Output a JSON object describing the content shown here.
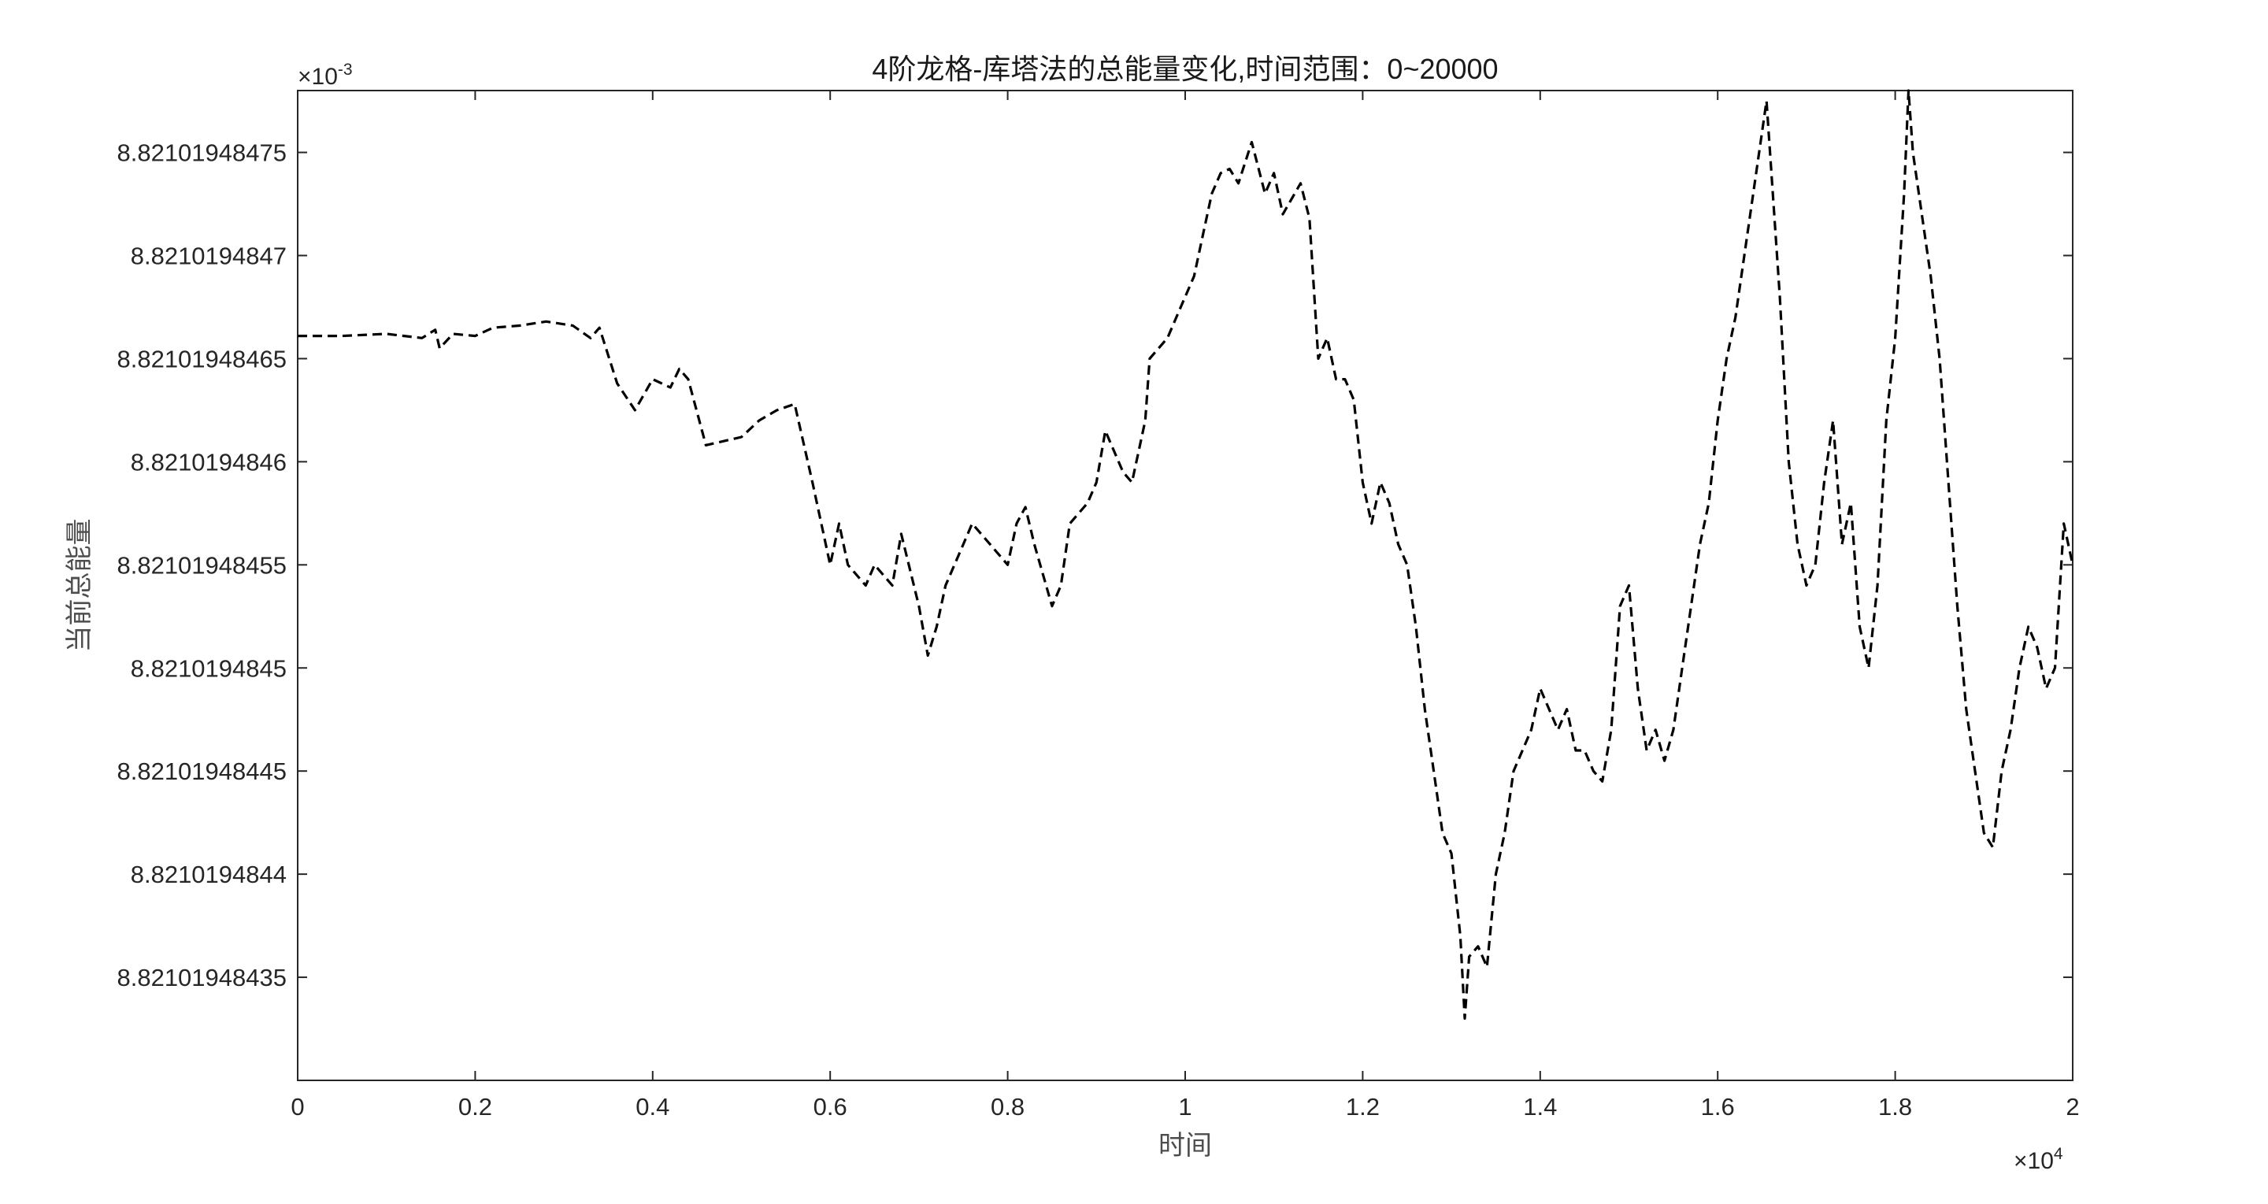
{
  "chart_data": {
    "type": "line",
    "title": "4阶龙格-库塔法的总能量变化,时间范围：0~20000",
    "xlabel": "时间",
    "ylabel": "当前总能量",
    "x_multiplier": "×10",
    "x_multiplier_exp": "4",
    "y_multiplier": "×10",
    "y_multiplier_exp": "-3",
    "xlim": [
      0,
      2
    ],
    "ylim": [
      8.8210194843,
      8.82101948478
    ],
    "x_ticks": [
      0,
      0.2,
      0.4,
      0.6,
      0.8,
      1,
      1.2,
      1.4,
      1.6,
      1.8,
      2
    ],
    "x_tick_labels": [
      "0",
      "0.2",
      "0.4",
      "0.6",
      "0.8",
      "1",
      "1.2",
      "1.4",
      "1.6",
      "1.8",
      "2"
    ],
    "y_ticks": [
      8.82101948435,
      8.8210194844,
      8.82101948445,
      8.8210194845,
      8.82101948455,
      8.8210194846,
      8.82101948465,
      8.8210194847,
      8.82101948475
    ],
    "y_tick_labels": [
      "8.82101948435",
      "8.8210194844",
      "8.82101948445",
      "8.8210194845",
      "8.82101948455",
      "8.8210194846",
      "8.82101948465",
      "8.8210194847",
      "8.82101948475"
    ],
    "grid": false,
    "series": [
      {
        "line_style": "dashed",
        "color": "#000000",
        "points": [
          [
            0,
            8.821019484661
          ],
          [
            0.05,
            8.821019484661
          ],
          [
            0.1,
            8.821019484662
          ],
          [
            0.14,
            8.82101948466
          ],
          [
            0.155,
            8.821019484664
          ],
          [
            0.16,
            8.821019484655
          ],
          [
            0.175,
            8.821019484662
          ],
          [
            0.2,
            8.821019484661
          ],
          [
            0.22,
            8.821019484665
          ],
          [
            0.25,
            8.821019484666
          ],
          [
            0.28,
            8.821019484668
          ],
          [
            0.31,
            8.821019484666
          ],
          [
            0.33,
            8.82101948466
          ],
          [
            0.34,
            8.821019484665
          ],
          [
            0.36,
            8.821019484638
          ],
          [
            0.38,
            8.821019484625
          ],
          [
            0.4,
            8.82101948464
          ],
          [
            0.42,
            8.821019484636
          ],
          [
            0.43,
            8.821019484645
          ],
          [
            0.44,
            8.82101948464
          ],
          [
            0.46,
            8.821019484608
          ],
          [
            0.48,
            8.82101948461
          ],
          [
            0.5,
            8.821019484612
          ],
          [
            0.52,
            8.82101948462
          ],
          [
            0.54,
            8.821019484625
          ],
          [
            0.56,
            8.821019484628
          ],
          [
            0.58,
            8.82101948459
          ],
          [
            0.6,
            8.82101948455
          ],
          [
            0.61,
            8.82101948457
          ],
          [
            0.62,
            8.82101948455
          ],
          [
            0.64,
            8.82101948454
          ],
          [
            0.65,
            8.82101948455
          ],
          [
            0.67,
            8.82101948454
          ],
          [
            0.68,
            8.821019484565
          ],
          [
            0.7,
            8.82101948453
          ],
          [
            0.71,
            8.821019484506
          ],
          [
            0.72,
            8.82101948452
          ],
          [
            0.73,
            8.82101948454
          ],
          [
            0.75,
            8.82101948456
          ],
          [
            0.76,
            8.82101948457
          ],
          [
            0.78,
            8.82101948456
          ],
          [
            0.8,
            8.82101948455
          ],
          [
            0.81,
            8.82101948457
          ],
          [
            0.82,
            8.821019484578
          ],
          [
            0.83,
            8.82101948456
          ],
          [
            0.85,
            8.82101948453
          ],
          [
            0.86,
            8.82101948454
          ],
          [
            0.87,
            8.82101948457
          ],
          [
            0.89,
            8.82101948458
          ],
          [
            0.9,
            8.82101948459
          ],
          [
            0.91,
            8.821019484615
          ],
          [
            0.93,
            8.821019484595
          ],
          [
            0.94,
            8.82101948459
          ],
          [
            0.955,
            8.82101948462
          ],
          [
            0.96,
            8.82101948465
          ],
          [
            0.98,
            8.82101948466
          ],
          [
            0.99,
            8.82101948467
          ],
          [
            1.0,
            8.82101948468
          ],
          [
            1.01,
            8.82101948469
          ],
          [
            1.02,
            8.82101948471
          ],
          [
            1.03,
            8.82101948473
          ],
          [
            1.04,
            8.82101948474
          ],
          [
            1.05,
            8.821019484742
          ],
          [
            1.06,
            8.821019484735
          ],
          [
            1.075,
            8.821019484755
          ],
          [
            1.09,
            8.82101948473
          ],
          [
            1.1,
            8.82101948474
          ],
          [
            1.11,
            8.82101948472
          ],
          [
            1.13,
            8.821019484735
          ],
          [
            1.14,
            8.821019484718
          ],
          [
            1.15,
            8.82101948465
          ],
          [
            1.16,
            8.82101948466
          ],
          [
            1.17,
            8.82101948464
          ],
          [
            1.18,
            8.82101948464
          ],
          [
            1.19,
            8.82101948463
          ],
          [
            1.2,
            8.82101948459
          ],
          [
            1.21,
            8.82101948457
          ],
          [
            1.22,
            8.82101948459
          ],
          [
            1.23,
            8.82101948458
          ],
          [
            1.24,
            8.82101948456
          ],
          [
            1.25,
            8.82101948455
          ],
          [
            1.26,
            8.82101948452
          ],
          [
            1.27,
            8.82101948448
          ],
          [
            1.28,
            8.82101948445
          ],
          [
            1.29,
            8.82101948442
          ],
          [
            1.3,
            8.82101948441
          ],
          [
            1.31,
            8.82101948437
          ],
          [
            1.315,
            8.82101948433
          ],
          [
            1.32,
            8.82101948436
          ],
          [
            1.33,
            8.821019484365
          ],
          [
            1.34,
            8.821019484355
          ],
          [
            1.35,
            8.8210194844
          ],
          [
            1.36,
            8.82101948442
          ],
          [
            1.37,
            8.82101948445
          ],
          [
            1.38,
            8.82101948446
          ],
          [
            1.39,
            8.82101948447
          ],
          [
            1.4,
            8.82101948449
          ],
          [
            1.41,
            8.82101948448
          ],
          [
            1.42,
            8.82101948447
          ],
          [
            1.43,
            8.82101948448
          ],
          [
            1.44,
            8.82101948446
          ],
          [
            1.45,
            8.82101948446
          ],
          [
            1.46,
            8.82101948445
          ],
          [
            1.47,
            8.821019484445
          ],
          [
            1.48,
            8.82101948447
          ],
          [
            1.49,
            8.82101948453
          ],
          [
            1.5,
            8.82101948454
          ],
          [
            1.51,
            8.82101948449
          ],
          [
            1.52,
            8.82101948446
          ],
          [
            1.53,
            8.82101948447
          ],
          [
            1.54,
            8.821019484455
          ],
          [
            1.55,
            8.82101948447
          ],
          [
            1.56,
            8.8210194845
          ],
          [
            1.57,
            8.82101948453
          ],
          [
            1.58,
            8.82101948456
          ],
          [
            1.59,
            8.82101948458
          ],
          [
            1.6,
            8.82101948462
          ],
          [
            1.61,
            8.82101948465
          ],
          [
            1.62,
            8.82101948467
          ],
          [
            1.63,
            8.8210194847
          ],
          [
            1.64,
            8.82101948473
          ],
          [
            1.655,
            8.821019484775
          ],
          [
            1.67,
            8.82101948468
          ],
          [
            1.68,
            8.8210194846
          ],
          [
            1.69,
            8.82101948456
          ],
          [
            1.7,
            8.82101948454
          ],
          [
            1.71,
            8.82101948455
          ],
          [
            1.72,
            8.82101948459
          ],
          [
            1.73,
            8.82101948462
          ],
          [
            1.74,
            8.82101948456
          ],
          [
            1.75,
            8.82101948458
          ],
          [
            1.76,
            8.82101948452
          ],
          [
            1.77,
            8.8210194845
          ],
          [
            1.78,
            8.82101948454
          ],
          [
            1.79,
            8.82101948462
          ],
          [
            1.8,
            8.82101948466
          ],
          [
            1.81,
            8.82101948473
          ],
          [
            1.815,
            8.82101948478
          ],
          [
            1.82,
            8.82101948475
          ],
          [
            1.83,
            8.82101948472
          ],
          [
            1.84,
            8.82101948469
          ],
          [
            1.85,
            8.82101948465
          ],
          [
            1.86,
            8.82101948459
          ],
          [
            1.87,
            8.82101948453
          ],
          [
            1.88,
            8.82101948448
          ],
          [
            1.89,
            8.82101948445
          ],
          [
            1.9,
            8.82101948442
          ],
          [
            1.91,
            8.821019484413
          ],
          [
            1.92,
            8.82101948445
          ],
          [
            1.93,
            8.82101948447
          ],
          [
            1.94,
            8.8210194845
          ],
          [
            1.95,
            8.82101948452
          ],
          [
            1.96,
            8.82101948451
          ],
          [
            1.97,
            8.82101948449
          ],
          [
            1.98,
            8.8210194845
          ],
          [
            1.99,
            8.82101948457
          ],
          [
            2.0,
            8.82101948455
          ]
        ]
      }
    ]
  }
}
